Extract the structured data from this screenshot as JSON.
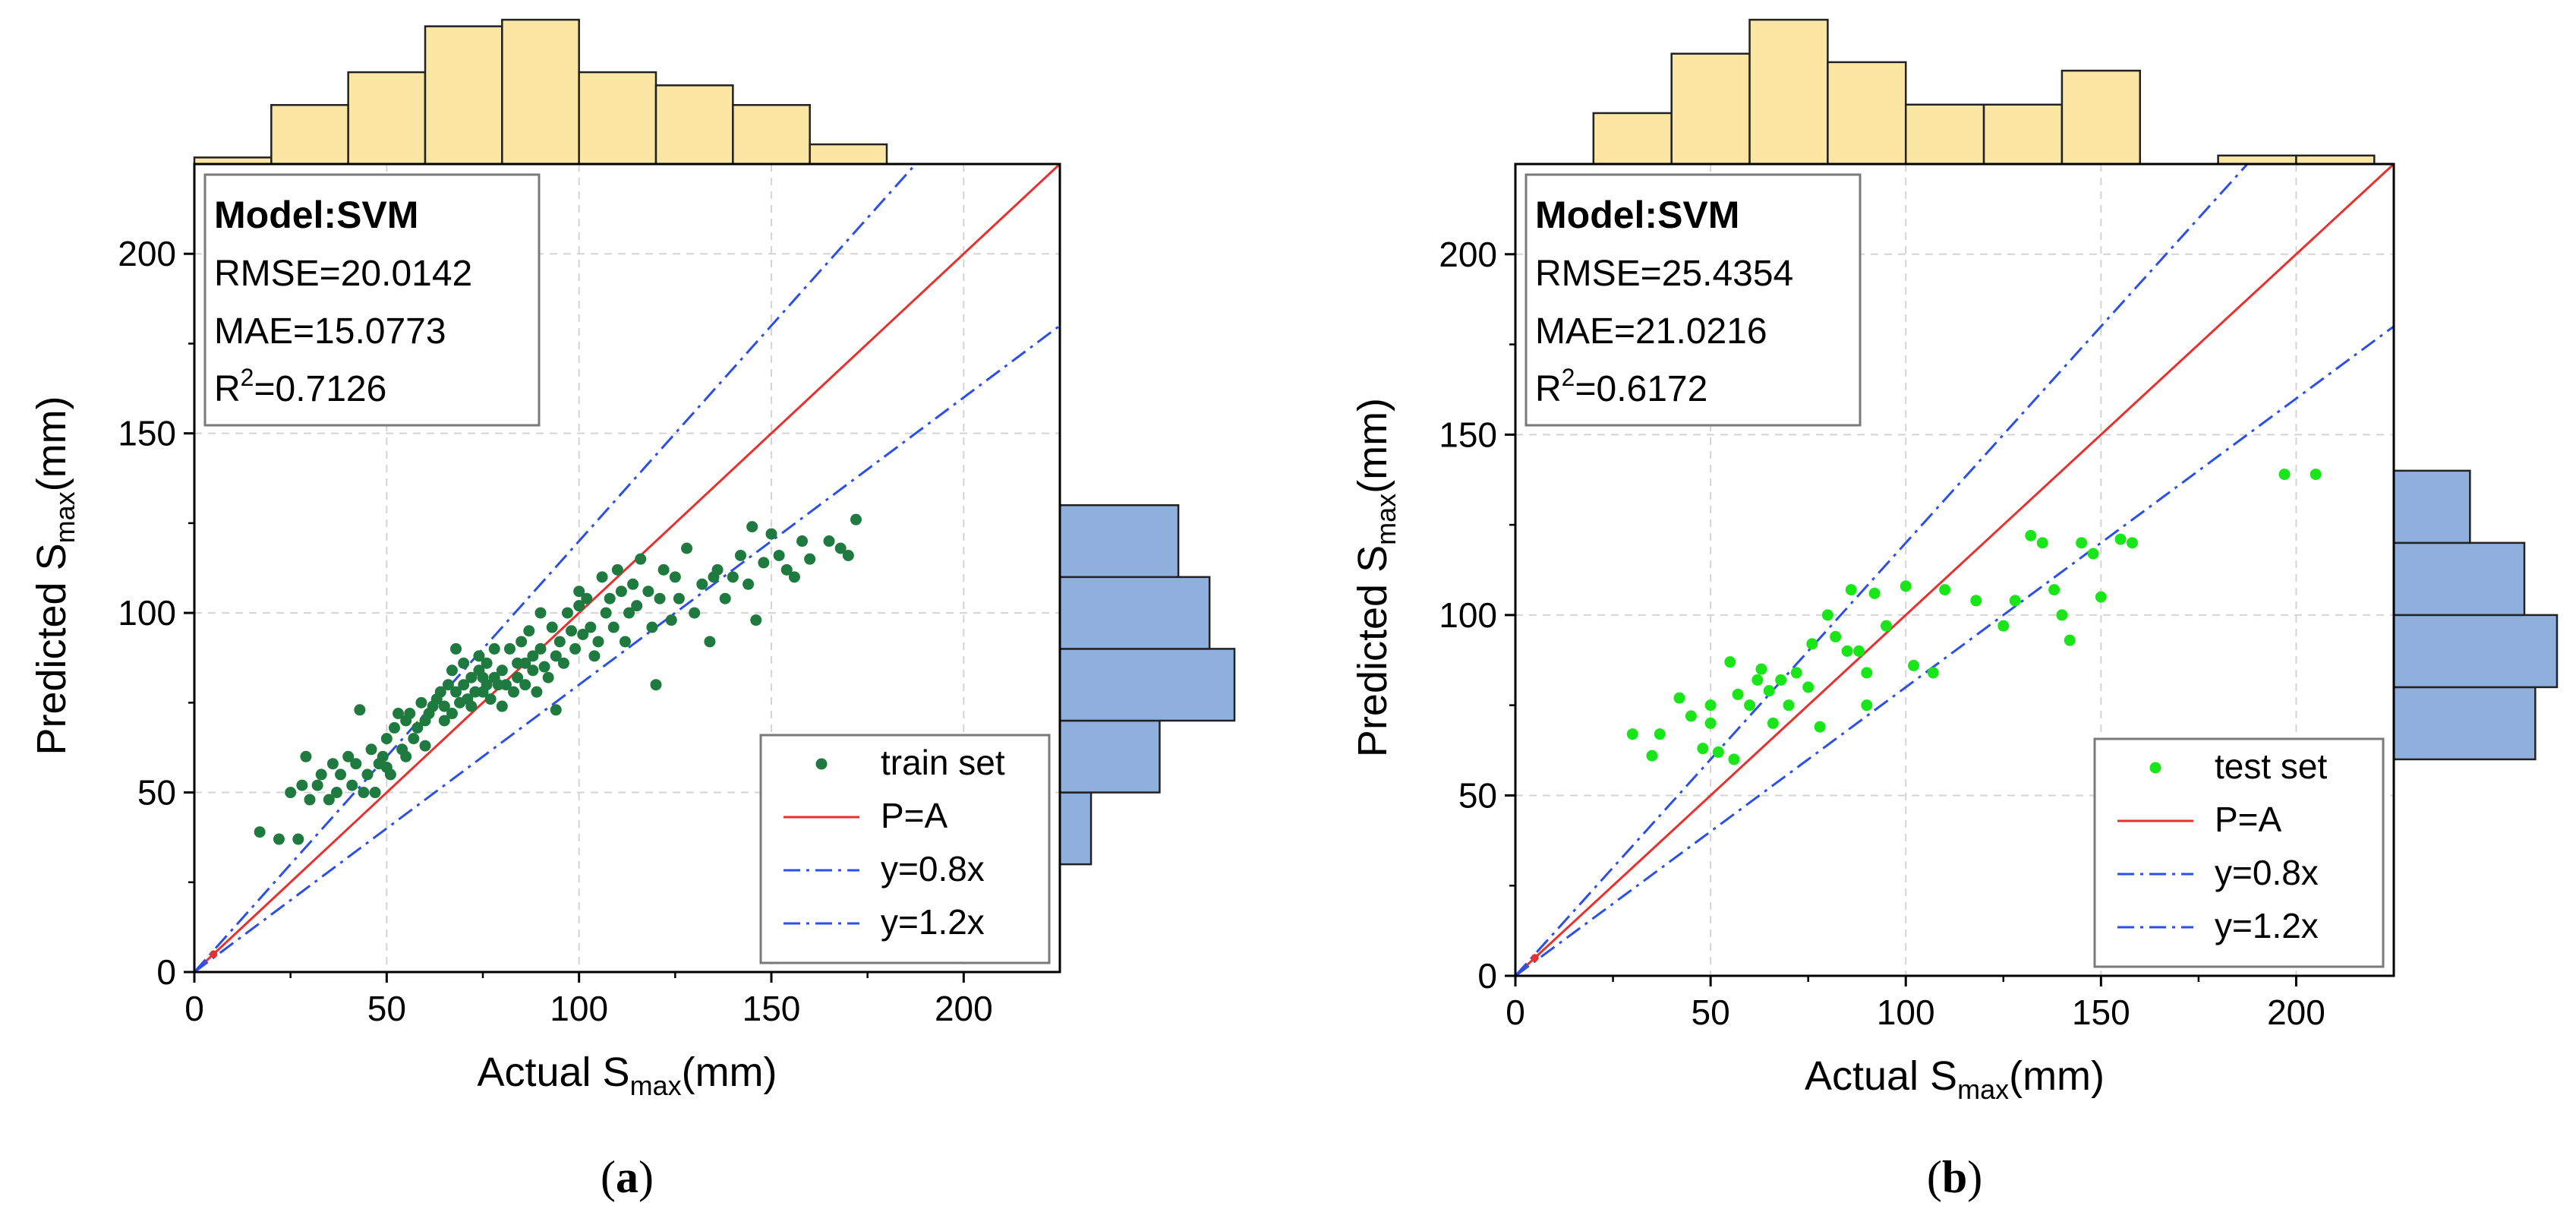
{
  "chart_data": [
    {
      "type": "scatter",
      "panel_label": "a",
      "model_label": "Model:SVM",
      "metrics": {
        "rmse": "RMSE=20.0142",
        "mae": "MAE=15.0773",
        "r2_prefix": "R",
        "r2_sup": "2",
        "r2_value": "=0.7126"
      },
      "xlabel": {
        "main": "Actual S",
        "sub": "max",
        "unit": "(mm)"
      },
      "ylabel": {
        "main": "Predicted S",
        "sub": "max",
        "unit": "(mm)"
      },
      "xlim": [
        0,
        225
      ],
      "ylim": [
        0,
        225
      ],
      "xticks": [
        0,
        50,
        100,
        150,
        200
      ],
      "yticks": [
        0,
        50,
        100,
        150,
        200
      ],
      "tick_labels": [
        "0",
        "50",
        "100",
        "150",
        "200"
      ],
      "grid": true,
      "legend": {
        "position": "bottom-right",
        "items": [
          "train set",
          "P=A",
          "y=0.8x",
          "y=1.2x"
        ]
      },
      "colors": {
        "points": "#1f7a3f",
        "parity": "#e8312f",
        "bounds": "#2b4fe8",
        "xhist": "#fbe7a3",
        "yhist": "#8fb0dd"
      },
      "lines": [
        {
          "name": "P=A",
          "slope": 1.0,
          "style": "solid"
        },
        {
          "name": "y=0.8x",
          "slope": 0.8,
          "style": "dashdot"
        },
        {
          "name": "y=1.2x",
          "slope": 1.2,
          "style": "dashdot"
        }
      ],
      "series": [
        {
          "name": "train set",
          "x": [
            17,
            22,
            25,
            27,
            28,
            29,
            30,
            32,
            33,
            35,
            36,
            37,
            38,
            40,
            41,
            42,
            43,
            44,
            45,
            46,
            47,
            48,
            49,
            50,
            50,
            51,
            52,
            53,
            54,
            55,
            55,
            56,
            57,
            58,
            59,
            60,
            60,
            61,
            62,
            63,
            64,
            65,
            65,
            66,
            67,
            67,
            68,
            68,
            69,
            70,
            70,
            71,
            72,
            72,
            73,
            74,
            74,
            75,
            75,
            76,
            76,
            77,
            78,
            78,
            79,
            80,
            80,
            81,
            82,
            83,
            84,
            84,
            85,
            86,
            86,
            87,
            88,
            88,
            89,
            90,
            90,
            91,
            92,
            93,
            94,
            94,
            95,
            96,
            97,
            98,
            99,
            100,
            100,
            101,
            102,
            103,
            104,
            105,
            106,
            107,
            108,
            109,
            110,
            111,
            112,
            113,
            114,
            115,
            116,
            118,
            119,
            120,
            121,
            122,
            124,
            125,
            126,
            128,
            130,
            132,
            134,
            135,
            136,
            138,
            140,
            142,
            144,
            145,
            146,
            148,
            150,
            152,
            154,
            156,
            158,
            160,
            165,
            168,
            170,
            172
          ],
          "y": [
            39,
            37,
            50,
            37,
            52,
            60,
            48,
            52,
            55,
            48,
            58,
            50,
            55,
            60,
            52,
            58,
            73,
            50,
            55,
            62,
            50,
            58,
            60,
            65,
            57,
            55,
            68,
            72,
            62,
            60,
            70,
            72,
            65,
            68,
            75,
            63,
            70,
            72,
            74,
            76,
            78,
            70,
            74,
            80,
            72,
            84,
            78,
            90,
            75,
            80,
            86,
            76,
            82,
            74,
            78,
            84,
            88,
            78,
            82,
            80,
            86,
            76,
            82,
            90,
            80,
            84,
            74,
            80,
            90,
            78,
            86,
            82,
            92,
            80,
            86,
            95,
            84,
            88,
            78,
            90,
            100,
            85,
            82,
            96,
            88,
            73,
            92,
            86,
            100,
            95,
            90,
            102,
            106,
            94,
            104,
            96,
            88,
            92,
            110,
            100,
            104,
            96,
            112,
            106,
            92,
            100,
            108,
            102,
            115,
            106,
            96,
            80,
            104,
            112,
            98,
            110,
            104,
            118,
            100,
            108,
            92,
            110,
            112,
            104,
            110,
            116,
            108,
            124,
            98,
            114,
            122,
            116,
            112,
            110,
            120,
            115,
            120,
            118,
            116,
            126
          ]
        }
      ],
      "x_hist": {
        "bins": [
          0,
          20,
          40,
          60,
          80,
          100,
          120,
          140,
          160,
          180,
          200,
          220
        ],
        "counts": [
          1,
          9,
          14,
          21,
          22,
          14,
          12,
          9,
          3,
          0,
          0
        ]
      },
      "y_hist": {
        "bins": [
          30,
          50,
          70,
          90,
          110,
          130,
          150
        ],
        "counts": [
          5,
          16,
          28,
          24,
          19,
          0
        ]
      }
    },
    {
      "type": "scatter",
      "panel_label": "b",
      "model_label": "Model:SVM",
      "metrics": {
        "rmse": "RMSE=25.4354",
        "mae": "MAE=21.0216",
        "r2_prefix": "R",
        "r2_sup": "2",
        "r2_value": "=0.6172"
      },
      "xlabel": {
        "main": "Actual S",
        "sub": "max",
        "unit": "(mm)"
      },
      "ylabel": {
        "main": "Predicted S",
        "sub": "max",
        "unit": "(mm)"
      },
      "xlim": [
        0,
        225
      ],
      "ylim": [
        0,
        225
      ],
      "xticks": [
        0,
        50,
        100,
        150,
        200
      ],
      "yticks": [
        0,
        50,
        100,
        150,
        200
      ],
      "tick_labels": [
        "0",
        "50",
        "100",
        "150",
        "200"
      ],
      "grid": true,
      "legend": {
        "position": "bottom-right",
        "items": [
          "test set",
          "P=A",
          "y=0.8x",
          "y=1.2x"
        ]
      },
      "colors": {
        "points": "#19e619",
        "parity": "#e8312f",
        "bounds": "#2b4fe8",
        "xhist": "#fbe7a3",
        "yhist": "#8fb0dd"
      },
      "lines": [
        {
          "name": "P=A",
          "slope": 1.0,
          "style": "solid"
        },
        {
          "name": "y=0.8x",
          "slope": 0.8,
          "style": "dashdot"
        },
        {
          "name": "y=1.2x",
          "slope": 1.2,
          "style": "dashdot"
        }
      ],
      "series": [
        {
          "name": "test set",
          "x": [
            30,
            35,
            37,
            42,
            45,
            48,
            50,
            50,
            52,
            55,
            56,
            57,
            60,
            62,
            63,
            65,
            66,
            68,
            70,
            72,
            75,
            76,
            78,
            80,
            82,
            85,
            86,
            88,
            90,
            90,
            92,
            95,
            100,
            102,
            107,
            110,
            118,
            125,
            128,
            135,
            138,
            140,
            142,
            145,
            148,
            150,
            155,
            158,
            197,
            205
          ],
          "y": [
            67,
            61,
            67,
            77,
            72,
            63,
            70,
            75,
            62,
            87,
            60,
            78,
            75,
            82,
            85,
            79,
            70,
            82,
            75,
            84,
            80,
            92,
            69,
            100,
            94,
            90,
            107,
            90,
            84,
            75,
            106,
            97,
            108,
            86,
            84,
            107,
            104,
            97,
            104,
            120,
            107,
            100,
            93,
            120,
            117,
            105,
            121,
            120,
            139,
            139
          ],
          "extra_point": {
            "x": 132,
            "y": 122
          }
        }
      ],
      "x_hist": {
        "bins": [
          20,
          40,
          60,
          80,
          100,
          120,
          140,
          160,
          180,
          200,
          220
        ],
        "counts": [
          6,
          13,
          17,
          12,
          7,
          7,
          11,
          0,
          1,
          1
        ]
      },
      "y_hist": {
        "bins": [
          60,
          80,
          100,
          120,
          140
        ],
        "counts": [
          13,
          15,
          12,
          7
        ]
      }
    }
  ]
}
